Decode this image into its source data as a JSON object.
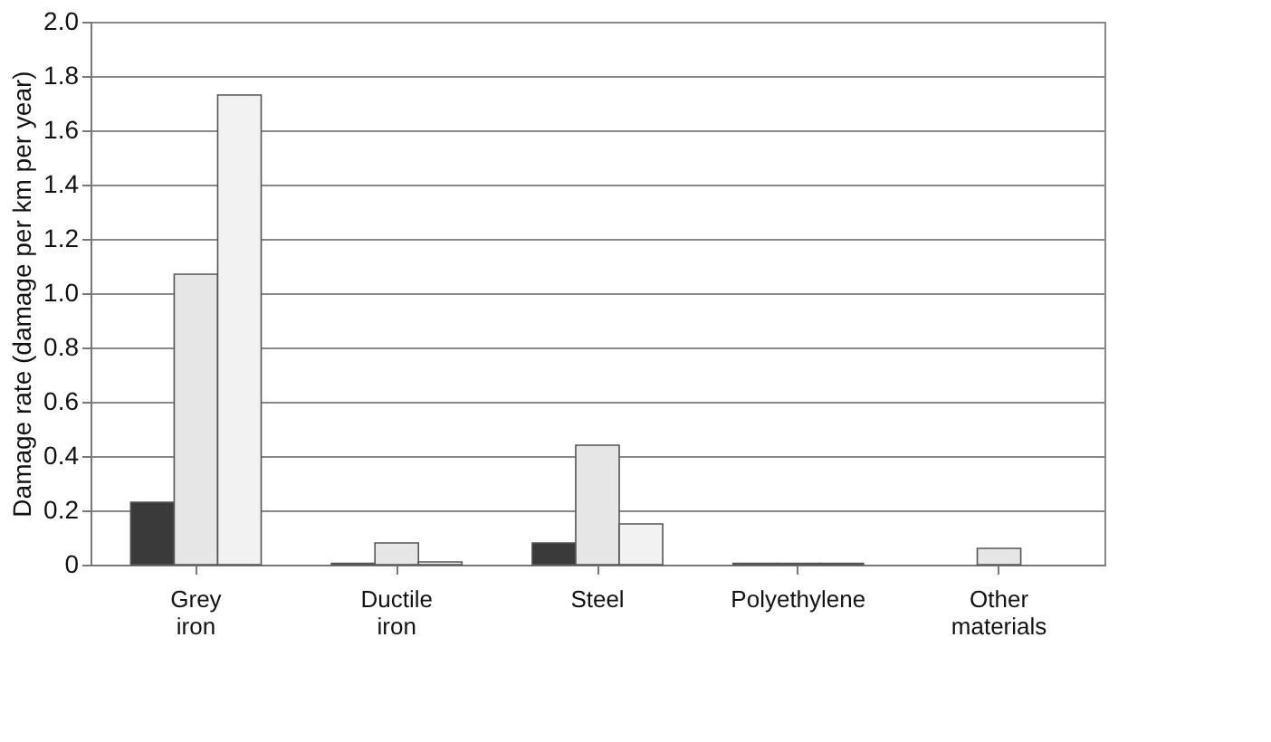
{
  "chart_data": {
    "type": "bar",
    "ylabel": "Damage rate (damage per km per year)",
    "categories": [
      "Grey\niron",
      "Ductile\niron",
      "Steel",
      "Polyethylene",
      "Other\nmaterials"
    ],
    "series": [
      {
        "color": "#3a3a3a",
        "values": [
          0.23,
          0.005,
          0.08,
          0.005,
          null
        ]
      },
      {
        "color": "#e6e6e6",
        "values": [
          1.07,
          0.08,
          0.44,
          0.005,
          0.06
        ]
      },
      {
        "color": "#f2f2f2",
        "values": [
          1.73,
          0.01,
          0.15,
          0.005,
          null
        ]
      }
    ],
    "ylim": [
      0,
      2.0
    ],
    "yticks": [
      0,
      0.2,
      0.4,
      0.6,
      0.8,
      {
        "value": 1.0,
        "label": "1.0"
      },
      1.2,
      1.4,
      1.6,
      1.8,
      {
        "value": 2.0,
        "label": "2.0"
      }
    ],
    "grid": "y"
  }
}
